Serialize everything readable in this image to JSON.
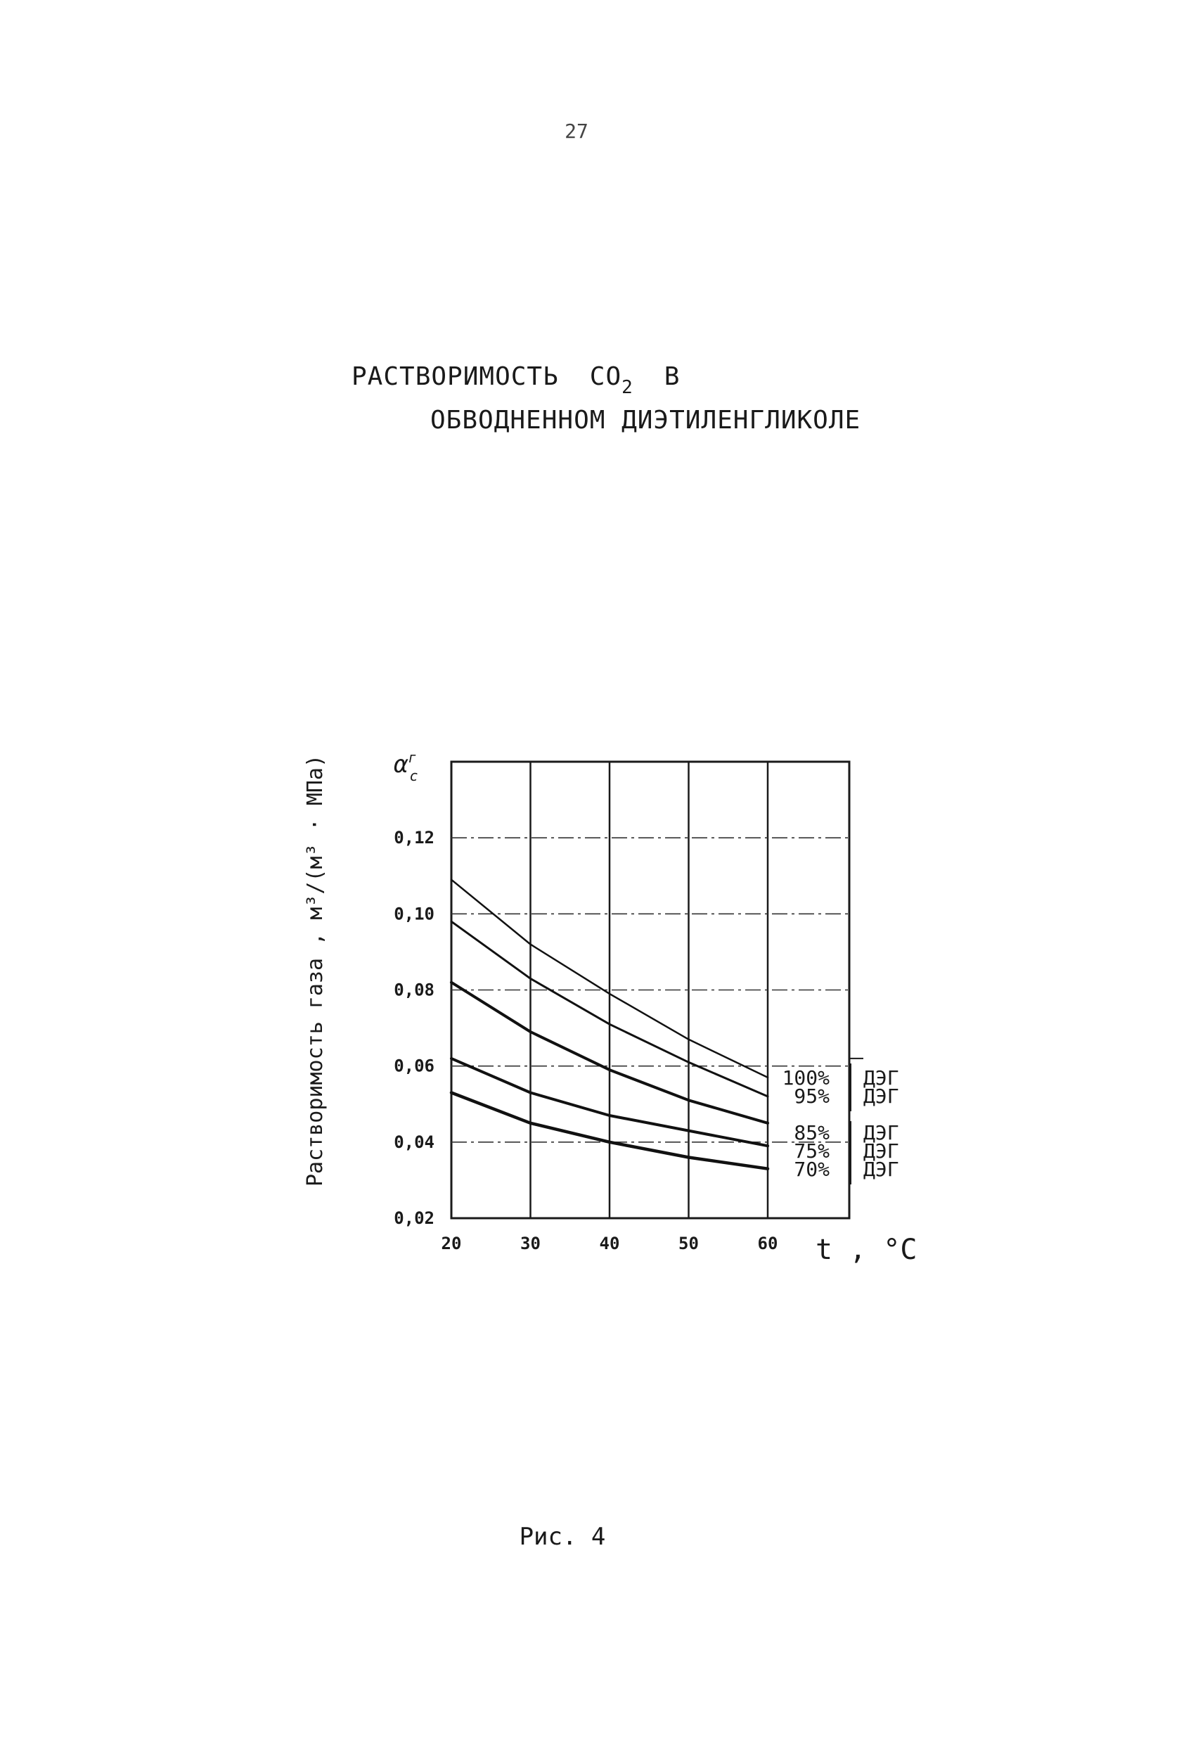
{
  "page": {
    "number": "27",
    "caption": "Рис. 4"
  },
  "title": {
    "line1_prefix": "РАСТВОРИМОСТЬ",
    "line1_formula": "CO",
    "line1_subscript": "2",
    "line1_suffix": "В",
    "line2": "ОБВОДНЕННОМ ДИЭТИЛЕНГЛИКОЛЕ"
  },
  "chart_data": {
    "type": "line",
    "title": "РАСТВОРИМОСТЬ CO2 В ОБВОДНЕННОМ ДИЭТИЛЕНГЛИКОЛЕ",
    "xlabel": "t , °C",
    "ylabel": "Растворимость газа , м³/(м³ · МПа)",
    "ysymbol": "α",
    "ysymbol_super": "г",
    "ysymbol_sub": "с",
    "x": [
      20,
      30,
      40,
      50,
      60
    ],
    "xlim": [
      20,
      60
    ],
    "ylim": [
      0.02,
      0.14
    ],
    "x_ticks": [
      "20",
      "30",
      "40",
      "50",
      "60"
    ],
    "y_ticks": [
      {
        "value": 0.02,
        "label": "0,02"
      },
      {
        "value": 0.04,
        "label": "0,04"
      },
      {
        "value": 0.06,
        "label": "0,06"
      },
      {
        "value": 0.08,
        "label": "0,08"
      },
      {
        "value": 0.1,
        "label": "0,10"
      },
      {
        "value": 0.12,
        "label": "0,12"
      }
    ],
    "grid": true,
    "legend_position": "right",
    "series": [
      {
        "name": "100% ДЭГ",
        "pct": "100%",
        "agent": "ДЭГ",
        "values": [
          0.109,
          0.092,
          0.079,
          0.067,
          0.057
        ]
      },
      {
        "name": "95% ДЭГ",
        "pct": "95%",
        "agent": "ДЭГ",
        "values": [
          0.098,
          0.083,
          0.071,
          0.061,
          0.052
        ]
      },
      {
        "name": "85% ДЭГ",
        "pct": "85%",
        "agent": "ДЭГ",
        "values": [
          0.082,
          0.069,
          0.059,
          0.051,
          0.045
        ]
      },
      {
        "name": "75% ДЭГ",
        "pct": "75%",
        "agent": "ДЭГ",
        "values": [
          0.062,
          0.053,
          0.047,
          0.043,
          0.039
        ]
      },
      {
        "name": "70% ДЭГ",
        "pct": "70%",
        "agent": "ДЭГ",
        "values": [
          0.053,
          0.045,
          0.04,
          0.036,
          0.033
        ]
      }
    ]
  }
}
